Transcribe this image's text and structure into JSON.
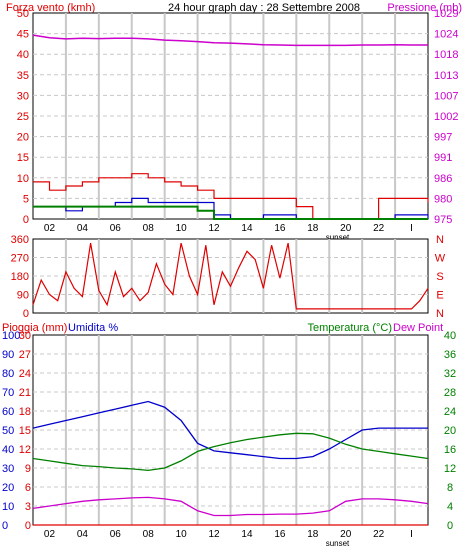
{
  "header": {
    "left": "Forza vento (kmh)",
    "center": "24 hour graph day : 28 Settembre 2008",
    "right": "Pressione (mb)"
  },
  "colors": {
    "wind": "#e00000",
    "gust": "#e00000",
    "wind_avg": "#0000cc",
    "wind_alt": "#008000",
    "pressure": "#cc00cc",
    "direction": "#e00000",
    "rain": "#e00000",
    "humidity": "#0000cc",
    "temperature": "#008000",
    "dewpoint": "#cc00cc",
    "grid": "#c8c8c8",
    "frame": "#000000"
  },
  "x_axis": {
    "ticks": [
      "02",
      "04",
      "06",
      "08",
      "10",
      "12",
      "14",
      "16",
      "18",
      "20",
      "22",
      "I"
    ],
    "sunset_label": "sunset"
  },
  "chart_data": [
    {
      "type": "line",
      "name": "wind-pressure",
      "left_axis": {
        "label": "Forza vento (kmh)",
        "ticks": [
          0,
          5,
          10,
          15,
          20,
          25,
          30,
          35,
          40,
          45,
          50
        ],
        "range": [
          0,
          50
        ]
      },
      "right_axis": {
        "label": "Pressione (mb)",
        "ticks": [
          975,
          980,
          986,
          991,
          997,
          1002,
          1007,
          1013,
          1018,
          1024,
          1029
        ],
        "range": [
          975,
          1029
        ]
      },
      "x": [
        0,
        1,
        2,
        3,
        4,
        5,
        6,
        7,
        8,
        9,
        10,
        11,
        12,
        13,
        14,
        15,
        16,
        17,
        18,
        19,
        20,
        21,
        22,
        23,
        24
      ],
      "series": [
        {
          "role": "gust",
          "values": [
            9,
            7,
            8,
            9,
            10,
            10,
            11,
            10,
            9,
            8,
            7,
            5,
            5,
            5,
            5,
            5,
            3,
            0,
            0,
            0,
            0,
            5,
            5,
            5,
            4
          ]
        },
        {
          "role": "avg",
          "values": [
            3,
            3,
            2,
            3,
            3,
            4,
            5,
            4,
            4,
            4,
            4,
            1,
            0,
            0,
            1,
            1,
            0,
            0,
            0,
            0,
            0,
            0,
            1,
            1,
            0
          ]
        },
        {
          "role": "alt",
          "values": [
            3,
            3,
            3,
            3,
            3,
            3,
            3,
            3,
            3,
            3,
            2,
            0,
            0,
            0,
            0,
            0,
            0,
            0,
            0,
            0,
            0,
            0,
            0,
            0,
            0
          ]
        },
        {
          "role": "pressure",
          "values": [
            1023.2,
            1022.5,
            1022.2,
            1022.4,
            1022.3,
            1022.4,
            1022.4,
            1022.2,
            1021.9,
            1021.7,
            1021.5,
            1021.2,
            1021.1,
            1020.9,
            1020.7,
            1020.6,
            1020.5,
            1020.5,
            1020.5,
            1020.5,
            1020.6,
            1020.6,
            1020.7,
            1020.6,
            1020.6
          ]
        }
      ]
    },
    {
      "type": "line",
      "name": "wind-direction",
      "left_axis": {
        "ticks": [
          0,
          90,
          180,
          270,
          360
        ],
        "range": [
          0,
          360
        ]
      },
      "right_axis": {
        "ticks": [
          "N",
          "W",
          "S",
          "E",
          "N"
        ],
        "letters": [
          "N",
          "W",
          "S",
          "E",
          "N"
        ]
      },
      "x": [
        0,
        0.5,
        1,
        1.5,
        2,
        2.5,
        3,
        3.5,
        4,
        4.5,
        5,
        5.5,
        6,
        6.5,
        7,
        7.5,
        8,
        8.5,
        9,
        9.5,
        10,
        10.5,
        11,
        11.5,
        12,
        12.5,
        13,
        13.5,
        14,
        14.5,
        15,
        15.5,
        16,
        16.5,
        17,
        17.5,
        18,
        18.5,
        19,
        19.5,
        20,
        20.5,
        21,
        21.5,
        22,
        22.5,
        23,
        23.5,
        24
      ],
      "series": [
        {
          "role": "direction",
          "values": [
            40,
            160,
            90,
            60,
            200,
            120,
            80,
            340,
            110,
            40,
            200,
            80,
            120,
            60,
            100,
            240,
            140,
            90,
            340,
            180,
            90,
            330,
            40,
            200,
            130,
            220,
            300,
            260,
            120,
            330,
            170,
            340,
            20,
            20,
            20,
            20,
            20,
            20,
            20,
            20,
            20,
            20,
            20,
            20,
            20,
            20,
            20,
            60,
            120
          ]
        }
      ]
    },
    {
      "type": "line",
      "name": "rain-humidity-temperature",
      "left_axis": {
        "label": "Pioggia (mm)",
        "ticks": [
          0,
          3,
          6,
          9,
          12,
          15,
          18,
          21,
          24,
          27,
          30
        ],
        "range": [
          0,
          30
        ]
      },
      "humidity_axis": {
        "label": "Umidita %",
        "ticks": [
          0,
          10,
          20,
          30,
          40,
          50,
          60,
          70,
          80,
          90,
          100
        ],
        "range": [
          0,
          100
        ]
      },
      "right_axis": {
        "label": "Temperatura (°C)",
        "ticks": [
          0,
          4,
          8,
          12,
          16,
          20,
          24,
          28,
          32,
          36,
          40
        ],
        "range": [
          0,
          40
        ]
      },
      "dew_label": "Dew Point",
      "x": [
        0,
        1,
        2,
        3,
        4,
        5,
        6,
        7,
        8,
        9,
        10,
        11,
        12,
        13,
        14,
        15,
        16,
        17,
        18,
        19,
        20,
        21,
        22,
        23,
        24
      ],
      "series": [
        {
          "role": "rain",
          "axis": "rain",
          "values": [
            0,
            0,
            0,
            0,
            0,
            0,
            0,
            0,
            0,
            0,
            0,
            0,
            0,
            0,
            0,
            0,
            0,
            0,
            0,
            0,
            0,
            0,
            0,
            0,
            0
          ]
        },
        {
          "role": "humidity",
          "axis": "humidity",
          "values": [
            51,
            53,
            55,
            57,
            59,
            61,
            63,
            65,
            62,
            55,
            43,
            39,
            38,
            37,
            36,
            35,
            35,
            36,
            40,
            45,
            50,
            51,
            51,
            51,
            51
          ]
        },
        {
          "role": "temperature",
          "axis": "temperature",
          "values": [
            14,
            13.5,
            13,
            12.5,
            12.3,
            12,
            11.8,
            11.5,
            12,
            13.5,
            15.5,
            16.5,
            17.3,
            18,
            18.5,
            19,
            19.3,
            19.2,
            18.3,
            17,
            16,
            15.5,
            15,
            14.5,
            14
          ]
        },
        {
          "role": "dewpoint",
          "axis": "temperature",
          "values": [
            3.5,
            4,
            4.5,
            5,
            5.3,
            5.5,
            5.7,
            5.8,
            5.5,
            5,
            3,
            2,
            2,
            2.2,
            2.2,
            2.3,
            2.3,
            2.5,
            3,
            5,
            5.5,
            5.5,
            5.3,
            5,
            4.5
          ]
        }
      ]
    }
  ]
}
